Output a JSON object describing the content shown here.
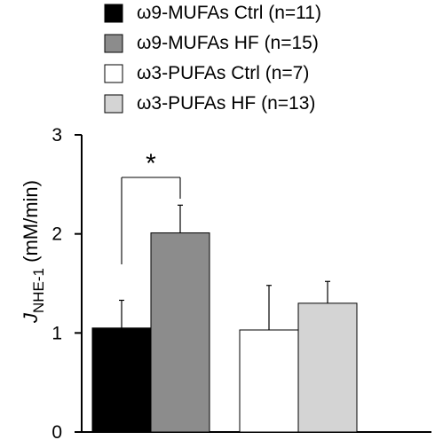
{
  "chart_data": {
    "type": "bar",
    "categories": [
      "ω9-MUFAs",
      "ω3-PUFAs"
    ],
    "ylabel": {
      "main": "J",
      "sub": "NHE-1",
      "suffix": " (mM/min)"
    },
    "ylim": [
      0,
      3
    ],
    "yticks": [
      "0",
      "1",
      "2",
      "3"
    ],
    "grid": false,
    "legend_position": "top",
    "series": [
      {
        "name": "ω9-MUFAs Ctrl (n=11)",
        "color": "#000000",
        "group": 0,
        "value": 1.05,
        "error_upper": 1.33
      },
      {
        "name": "ω9-MUFAs HF (n=15)",
        "color": "#8c8c8c",
        "group": 0,
        "value": 2.01,
        "error_upper": 2.29
      },
      {
        "name": "ω3-PUFAs Ctrl (n=7)",
        "color": "#ffffff",
        "group": 1,
        "value": 1.03,
        "error_upper": 1.48
      },
      {
        "name": "ω3-PUFAs HF (n=13)",
        "color": "#d4d4d4",
        "group": 1,
        "value": 1.3,
        "error_upper": 1.52
      }
    ],
    "annotations": [
      {
        "text": "*",
        "type": "significance",
        "between": [
          0,
          1
        ]
      }
    ]
  }
}
